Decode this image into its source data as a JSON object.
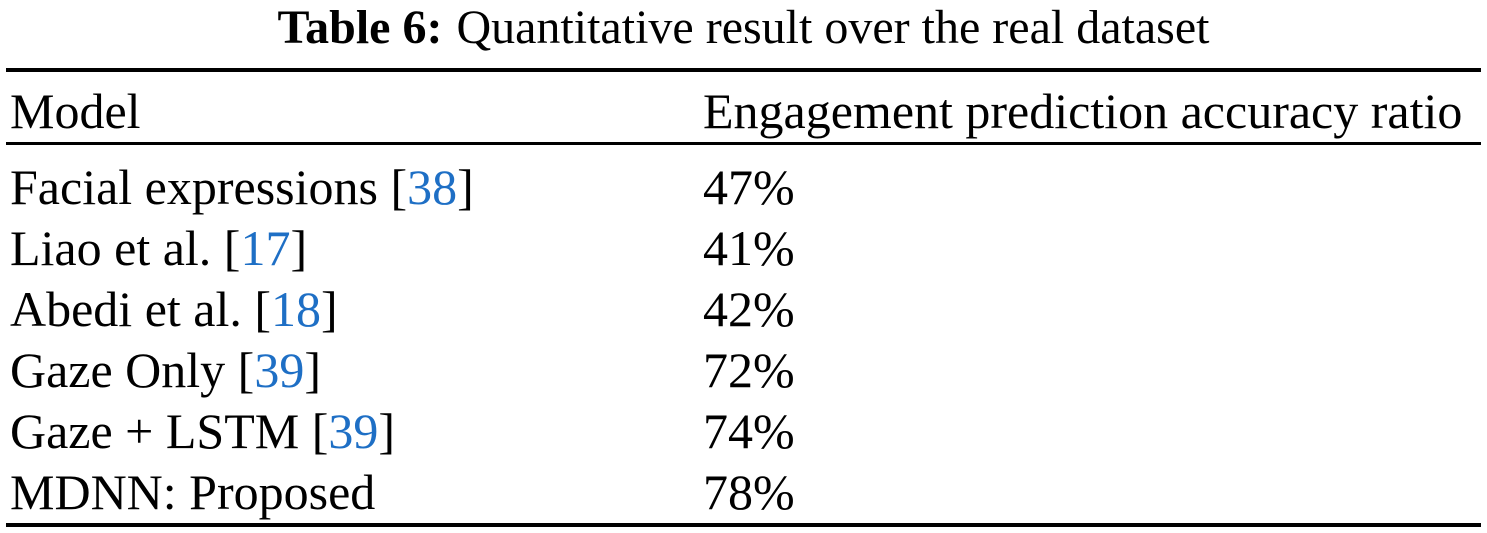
{
  "caption": {
    "label": "Table 6:",
    "text": "Quantitative result over the real dataset"
  },
  "table": {
    "columns": [
      "Model",
      "Engagement prediction accuracy ratio"
    ],
    "rows": [
      {
        "pre": "Facial expressions [",
        "cite": "38",
        "post": "]",
        "value": "47%"
      },
      {
        "pre": "Liao et al. [",
        "cite": "17",
        "post": "]",
        "value": "41%"
      },
      {
        "pre": "Abedi et al. [",
        "cite": "18",
        "post": "]",
        "value": "42%"
      },
      {
        "pre": "Gaze Only [",
        "cite": "39",
        "post": "]",
        "value": "72%"
      },
      {
        "pre": "Gaze + LSTM [",
        "cite": "39",
        "post": "]",
        "value": "74%"
      },
      {
        "pre": "MDNN: Proposed",
        "cite": "",
        "post": "",
        "value": "78%"
      }
    ]
  },
  "colors": {
    "citation": "#1E6FC5",
    "text": "#000000",
    "rule": "#000000",
    "background": "#ffffff"
  },
  "chart_data": {
    "type": "table",
    "title": "Table 6: Quantitative result over the real dataset",
    "columns": [
      "Model",
      "Engagement prediction accuracy ratio"
    ],
    "rows": [
      [
        "Facial expressions [38]",
        "47%"
      ],
      [
        "Liao et al. [17]",
        "41%"
      ],
      [
        "Abedi et al. [18]",
        "42%"
      ],
      [
        "Gaze Only [39]",
        "72%"
      ],
      [
        "Gaze + LSTM [39]",
        "74%"
      ],
      [
        "MDNN: Proposed",
        "78%"
      ]
    ],
    "values_numeric": [
      47,
      41,
      42,
      72,
      74,
      78
    ]
  }
}
